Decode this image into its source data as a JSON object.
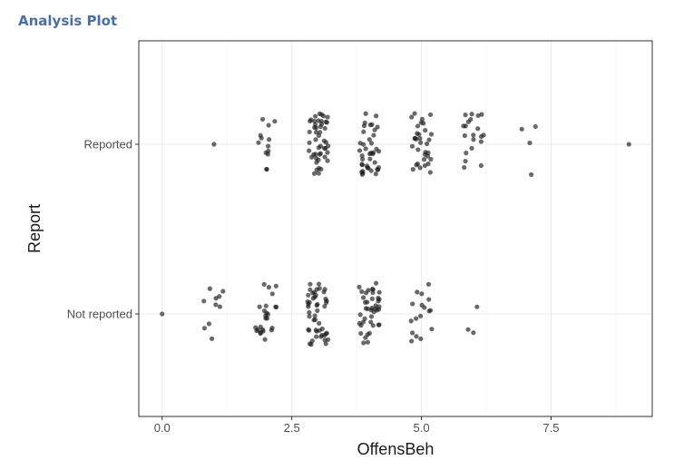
{
  "page": {
    "title": "Analysis Plot"
  },
  "colors": {
    "point": "#1a1a1a",
    "grid_major": "#ebebeb",
    "grid_minor": "#f5f5f5",
    "panel_border": "#333333"
  },
  "chart_data": {
    "type": "scatter",
    "jitter": true,
    "title": "",
    "xlabel": "OffensBeh",
    "ylabel": "Report",
    "xlim": [
      -0.45,
      9.45
    ],
    "x_ticks": [
      0,
      2.5,
      5,
      7.5
    ],
    "x_tick_labels": [
      "0.0",
      "2.5",
      "5.0",
      "7.5"
    ],
    "categories": [
      "Not reported",
      "Reported"
    ],
    "grid": true,
    "theme": "bw",
    "groups": [
      {
        "category": "Reported",
        "counts": [
          {
            "x": 1,
            "n": 1
          },
          {
            "x": 2,
            "n": 13
          },
          {
            "x": 3,
            "n": 48
          },
          {
            "x": 4,
            "n": 40
          },
          {
            "x": 5,
            "n": 33
          },
          {
            "x": 6,
            "n": 20
          },
          {
            "x": 7,
            "n": 4
          },
          {
            "x": 9,
            "n": 1
          }
        ]
      },
      {
        "category": "Not reported",
        "counts": [
          {
            "x": 0,
            "n": 1
          },
          {
            "x": 1,
            "n": 10
          },
          {
            "x": 2,
            "n": 25
          },
          {
            "x": 3,
            "n": 48
          },
          {
            "x": 4,
            "n": 42
          },
          {
            "x": 5,
            "n": 17
          },
          {
            "x": 6,
            "n": 3
          }
        ]
      }
    ]
  }
}
